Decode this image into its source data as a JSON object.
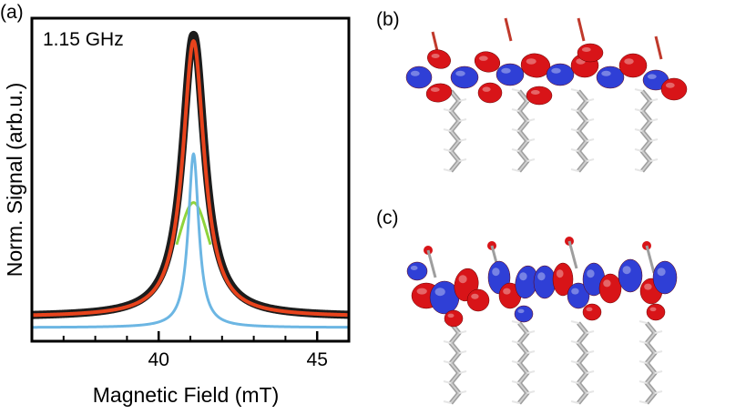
{
  "panels": {
    "a": "(a)",
    "b": "(b)",
    "c": "(c)"
  },
  "colors": {
    "black_fit": "#1c1c1c",
    "red_total": "#e8431c",
    "blue_component": "#6cb6e3",
    "green_component": "#8fd43c",
    "orbital_red": "#d81418",
    "orbital_blue": "#2f3fd6",
    "atom_grey": "#9e9e9e"
  },
  "chart_data": {
    "type": "line",
    "annotation": "1.15 GHz",
    "xlabel": "Magnetic Field (mT)",
    "ylabel": "Norm. Signal (arb.u.)",
    "xlim": [
      36,
      46
    ],
    "ylim": [
      0,
      1.0
    ],
    "xticks": [
      40,
      45
    ],
    "minor_xticks": [
      37,
      38,
      39,
      41,
      42,
      43,
      44,
      46
    ],
    "legend": "none",
    "grid": false,
    "series": [
      {
        "color": "#1c1c1c",
        "peak_x": 41.1,
        "peak_y": 0.96,
        "fwhm_mT": 0.85,
        "lineshape": "lorentzian",
        "baseline": 0.035
      },
      {
        "color": "#e8431c",
        "peak_x": 41.1,
        "peak_y": 0.94,
        "fwhm_mT": 0.82,
        "lineshape": "lorentzian",
        "baseline": 0.035
      },
      {
        "color": "#6cb6e3",
        "peak_x": 41.1,
        "peak_y": 0.57,
        "fwhm_mT": 0.4,
        "lineshape": "lorentzian",
        "baseline": 0.0
      },
      {
        "color": "#8fd43c",
        "peak_x": 41.1,
        "peak_y": 0.41,
        "fwhm_mT": 1.5,
        "lineshape": "lorentzian",
        "baseline": 0.0,
        "visible_above": 0.27
      }
    ]
  },
  "molecules": [
    {
      "panel": "b",
      "description_free": true,
      "orbital_lobes": 16
    },
    {
      "panel": "c",
      "description_free": true,
      "orbital_lobes": 20
    }
  ]
}
